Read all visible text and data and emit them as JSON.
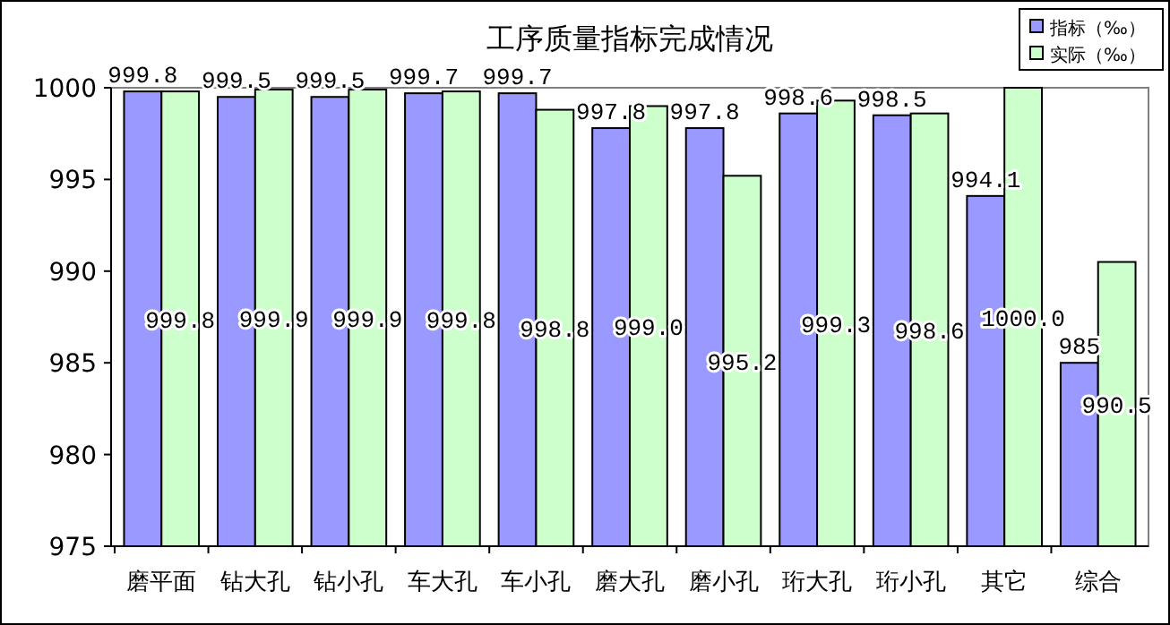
{
  "chart_data": {
    "type": "bar",
    "title": "工序质量指标完成情况",
    "categories": [
      "磨平面",
      "钻大孔",
      "钻小孔",
      "车大孔",
      "车小孔",
      "磨大孔",
      "磨小孔",
      "珩大孔",
      "珩小孔",
      "其它",
      "综合"
    ],
    "series": [
      {
        "name": "指标（‰）",
        "color": "#9999ff",
        "values": [
          999.8,
          999.5,
          999.5,
          999.7,
          999.7,
          997.8,
          997.8,
          998.6,
          998.5,
          994.1,
          985
        ],
        "value_labels": [
          "999.8",
          "999.5",
          "999.5",
          "999.7",
          "999.7",
          "997.8",
          "997.8",
          "998.6",
          "998.5",
          "994.1",
          "985"
        ]
      },
      {
        "name": "实际（‰）",
        "color": "#ccffcc",
        "values": [
          999.8,
          999.9,
          999.9,
          999.8,
          998.8,
          999.0,
          995.2,
          999.3,
          998.6,
          1000.0,
          990.5
        ],
        "value_labels": [
          "999.8",
          "999.9",
          "999.9",
          "999.8",
          "998.8",
          "999.0",
          "995.2",
          "999.3",
          "998.6",
          "1000.0",
          "990.5"
        ]
      }
    ],
    "ylim": [
      975,
      1000
    ],
    "yticks": [
      975,
      980,
      985,
      990,
      995,
      1000
    ],
    "grid": false,
    "legend": "top right"
  }
}
